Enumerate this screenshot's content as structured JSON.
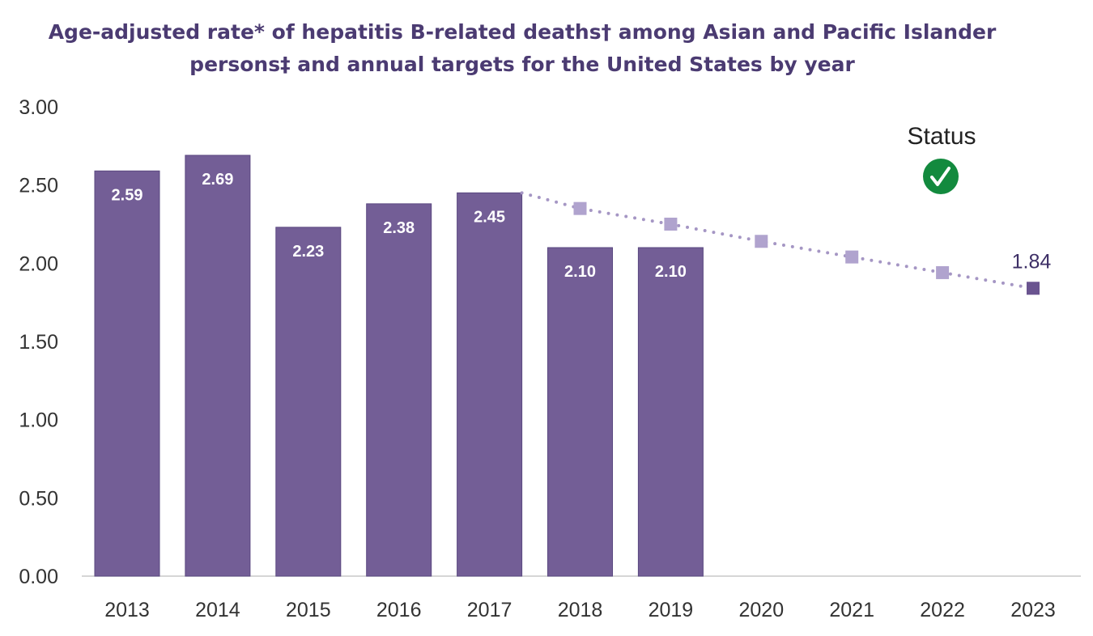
{
  "chart_data": {
    "type": "bar",
    "title": "Age-adjusted rate* of hepatitis B-related deaths† among Asian and Pacific Islander persons‡ and annual targets for the United States by year",
    "categories": [
      "2013",
      "2014",
      "2015",
      "2016",
      "2017",
      "2018",
      "2019",
      "2020",
      "2021",
      "2022",
      "2023"
    ],
    "series": [
      {
        "type": "bar",
        "values": [
          2.59,
          2.69,
          2.23,
          2.38,
          2.45,
          2.1,
          2.1,
          null,
          null,
          null,
          null
        ],
        "color": "#735e96"
      },
      {
        "type": "line",
        "style": "dotted",
        "values": [
          null,
          null,
          null,
          null,
          2.45,
          2.35,
          2.25,
          2.14,
          2.04,
          1.94,
          1.84
        ],
        "color": "#a596c4",
        "final_marker_color": "#6a5490"
      }
    ],
    "data_labels": [
      "2.59",
      "2.69",
      "2.23",
      "2.38",
      "2.45",
      "2.10",
      "2.10"
    ],
    "target_label": "1.84",
    "ylim": [
      0,
      3
    ],
    "yticks": [
      "0.00",
      "0.50",
      "1.00",
      "1.50",
      "2.00",
      "2.50",
      "3.00"
    ],
    "grid": false,
    "xlabel": "",
    "ylabel": "",
    "status": {
      "label": "Status",
      "icon": "check-circle-icon",
      "color": "#138a3e"
    }
  }
}
